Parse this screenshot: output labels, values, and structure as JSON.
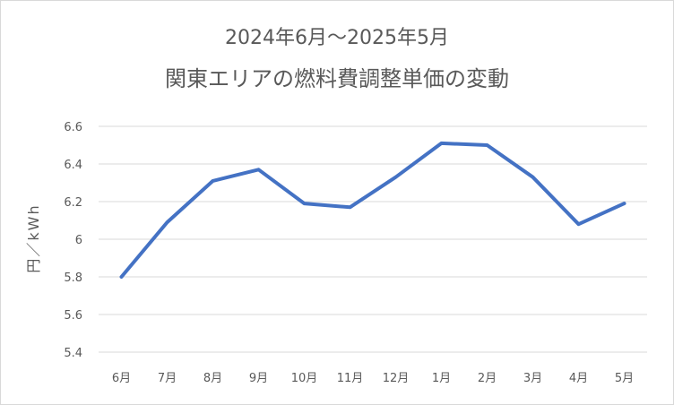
{
  "chart_data": {
    "type": "line",
    "title": "2024年6月～2025年5月",
    "subtitle": "関東エリアの燃料費調整単価の変動",
    "xlabel": "",
    "ylabel": "円／kWh",
    "categories": [
      "6月",
      "7月",
      "8月",
      "9月",
      "10月",
      "11月",
      "12月",
      "1月",
      "2月",
      "3月",
      "4月",
      "5月"
    ],
    "series": [
      {
        "values": [
          5.8,
          6.09,
          6.31,
          6.37,
          6.19,
          6.17,
          6.33,
          6.51,
          6.5,
          6.33,
          6.08,
          6.19
        ]
      }
    ],
    "ylim": [
      5.4,
      6.6
    ],
    "yticks": [
      "5.4",
      "5.6",
      "5.8",
      "6",
      "6.2",
      "6.4",
      "6.6"
    ],
    "grid": true,
    "legend": "none",
    "line_color": "#4472c4",
    "grid_color": "#d9d9d9"
  }
}
